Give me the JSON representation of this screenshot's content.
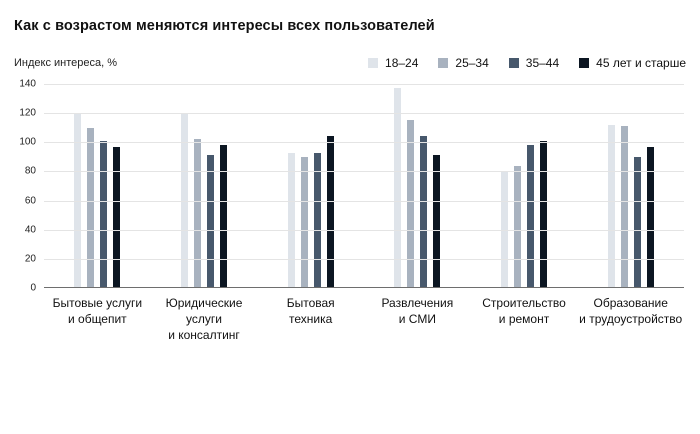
{
  "title": "Как с возрастом меняются интересы всех пользователей",
  "axis_label": "Индекс интереса, %",
  "chart_data": {
    "type": "bar",
    "categories": [
      "Бытовые услуги\nи общепит",
      "Юридические\nуслуги\nи консалтинг",
      "Бытовая\nтехника",
      "Развлечения\nи СМИ",
      "Строительство\nи ремонт",
      "Образование\nи трудоустройство"
    ],
    "series": [
      {
        "name": "18–24",
        "color": "#dfe4ea",
        "values": [
          120,
          120,
          93,
          137,
          80,
          112
        ]
      },
      {
        "name": "25–34",
        "color": "#a8b2bf",
        "values": [
          110,
          102,
          90,
          115,
          84,
          111
        ]
      },
      {
        "name": "35–44",
        "color": "#47586c",
        "values": [
          101,
          91,
          93,
          104,
          98,
          90
        ]
      },
      {
        "name": "45 лет и старше",
        "color": "#0c1622",
        "values": [
          97,
          98,
          104,
          91,
          101,
          97
        ]
      }
    ],
    "ylim": [
      0,
      140
    ],
    "yticks": [
      0,
      20,
      40,
      60,
      80,
      100,
      120,
      140
    ],
    "ylabel": "Индекс интереса, %",
    "xlabel": "",
    "grid": true,
    "legend_position": "top-right"
  }
}
